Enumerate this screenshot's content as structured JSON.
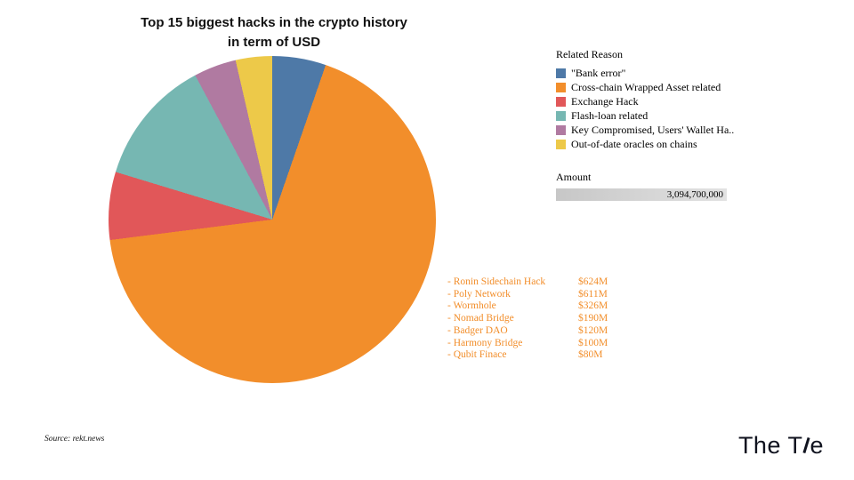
{
  "title": {
    "line1": "Top 15 biggest hacks in the crypto history",
    "line2": "in term of USD"
  },
  "legend": {
    "title": "Related Reason"
  },
  "size_legend": {
    "title": "Amount",
    "max_value": "3,094,700,000"
  },
  "source": "Source: rekt.news",
  "logo": {
    "text_left": "The T",
    "text_right": "e"
  },
  "chart_data": {
    "type": "pie",
    "title": "Top 15 biggest hacks in the crypto history in term of USD",
    "legend_title": "Related Reason",
    "legend_position": "right",
    "total_amount_usd": "3,094,700,000",
    "slices": [
      {
        "label": "\"Bank error\"",
        "color": "#4e79a7",
        "share_pct_est": 5.3
      },
      {
        "label": "Cross-chain Wrapped Asset related",
        "color": "#f28e2b",
        "share_pct_est": 67.7
      },
      {
        "label": "Exchange Hack",
        "color": "#e15759",
        "share_pct_est": 6.7
      },
      {
        "label": "Flash-loan related",
        "color": "#76b7b2",
        "share_pct_est": 12.5
      },
      {
        "label": "Key Compromised, Users' Wallet Ha..",
        "color": "#b07aa1",
        "share_pct_est": 4.2
      },
      {
        "label": "Out-of-date oracles on chains",
        "color": "#edc949",
        "share_pct_est": 3.6
      }
    ],
    "annotations": [
      {
        "name": "- Ronin Sidechain Hack",
        "amount": "$624M"
      },
      {
        "name": "- Poly Network",
        "amount": "$611M"
      },
      {
        "name": "- Wormhole",
        "amount": "$326M"
      },
      {
        "name": "- Nomad Bridge",
        "amount": "$190M"
      },
      {
        "name": "- Badger DAO",
        "amount": "$120M"
      },
      {
        "name": "- Harmony Bridge",
        "amount": "$100M"
      },
      {
        "name": "- Qubit Finace",
        "amount": "$80M"
      }
    ],
    "annotation_color": "#f28e2b"
  }
}
